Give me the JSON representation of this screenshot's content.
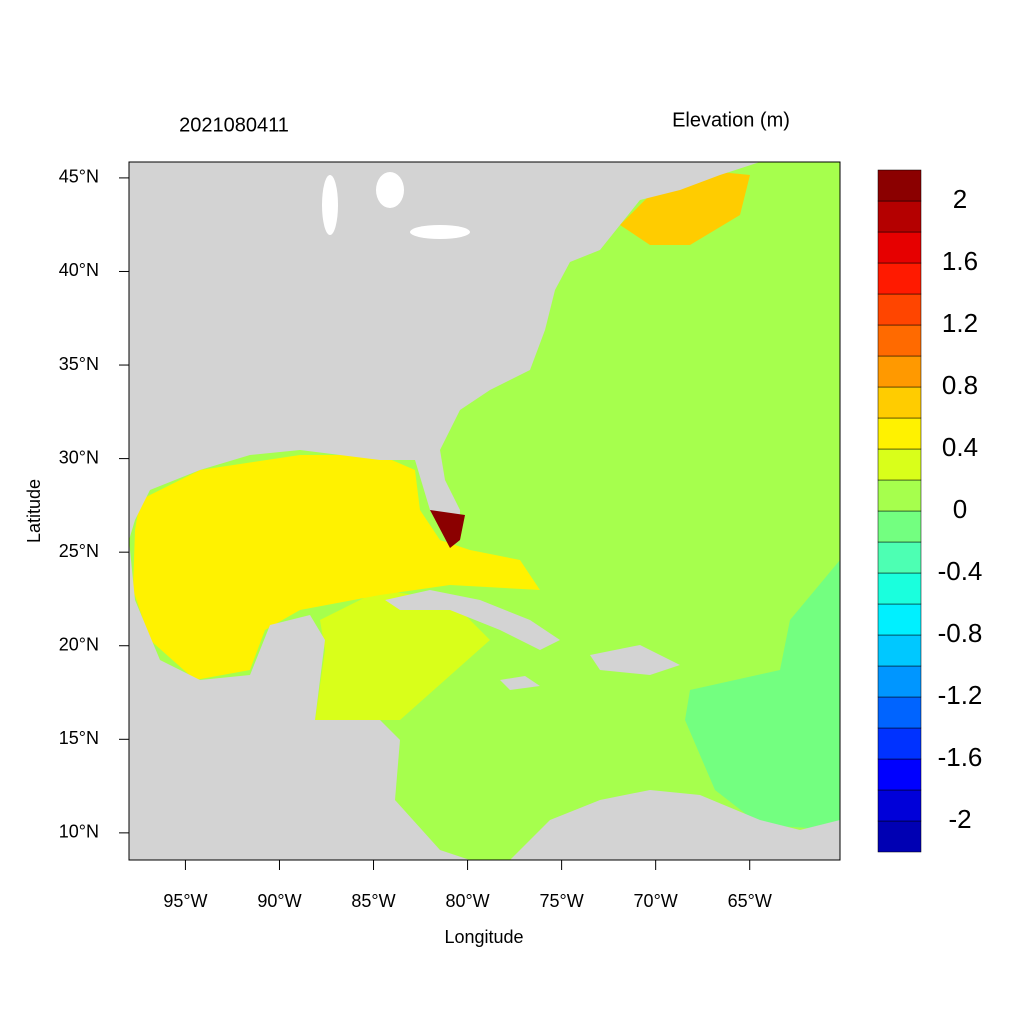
{
  "title_left": "2021080411",
  "title_right": "Elevation (m)",
  "map": {
    "xlabel": "Longitude",
    "ylabel": "Latitude",
    "xlim": [
      -98,
      -60.2
    ],
    "ylim": [
      8.55,
      45.85
    ],
    "xticks": [
      {
        "value": -95,
        "label": "95°W"
      },
      {
        "value": -90,
        "label": "90°W"
      },
      {
        "value": -85,
        "label": "85°W"
      },
      {
        "value": -80,
        "label": "80°W"
      },
      {
        "value": -75,
        "label": "75°W"
      },
      {
        "value": -70,
        "label": "70°W"
      },
      {
        "value": -65,
        "label": "65°W"
      }
    ],
    "yticks": [
      {
        "value": 10,
        "label": "10°N"
      },
      {
        "value": 15,
        "label": "15°N"
      },
      {
        "value": 20,
        "label": "20°N"
      },
      {
        "value": 25,
        "label": "25°N"
      },
      {
        "value": 30,
        "label": "30°N"
      },
      {
        "value": 35,
        "label": "35°N"
      },
      {
        "value": 40,
        "label": "40°N"
      },
      {
        "value": 45,
        "label": "45°N"
      }
    ]
  },
  "colorbar": {
    "levels": [
      -2.2,
      -2,
      -1.8,
      -1.6,
      -1.4,
      -1.2,
      -1,
      -0.8,
      -0.6,
      -0.4,
      -0.2,
      0,
      0.2,
      0.4,
      0.6,
      0.8,
      1,
      1.2,
      1.4,
      1.6,
      1.8,
      2,
      2.2
    ],
    "colors": [
      "#0000B3",
      "#0000D9",
      "#0000FF",
      "#0032FF",
      "#0064FF",
      "#0096FF",
      "#00C8FF",
      "#00F0FF",
      "#1AFFDD",
      "#4DFFB3",
      "#73FF80",
      "#A6FF4D",
      "#D9FF1A",
      "#FFF200",
      "#FFCC00",
      "#FF9900",
      "#FF6A00",
      "#FF4500",
      "#FF1A00",
      "#E60000",
      "#B40000",
      "#8B0000"
    ],
    "ticks": [
      -2,
      -1.6,
      -1.2,
      -0.8,
      -0.4,
      0,
      0.4,
      0.8,
      1.2,
      1.6,
      2
    ]
  }
}
